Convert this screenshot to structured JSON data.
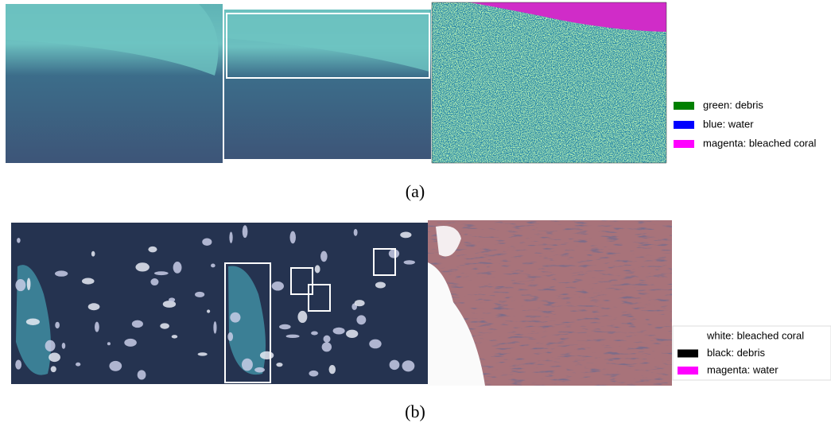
{
  "panels": [
    {
      "caption": "(a)",
      "legend": [
        {
          "label": "green: debris",
          "color": "#008000"
        },
        {
          "label": "blue: water",
          "color": "#0000ff"
        },
        {
          "label": "magenta: bleached coral",
          "color": "#ff00ff"
        }
      ]
    },
    {
      "caption": "(b)",
      "legend": [
        {
          "label": "white: bleached coral",
          "color": "#ffffff"
        },
        {
          "label": "black: debris",
          "color": "#000000"
        },
        {
          "label": "magenta: water",
          "color": "#ff00ff"
        }
      ]
    }
  ]
}
